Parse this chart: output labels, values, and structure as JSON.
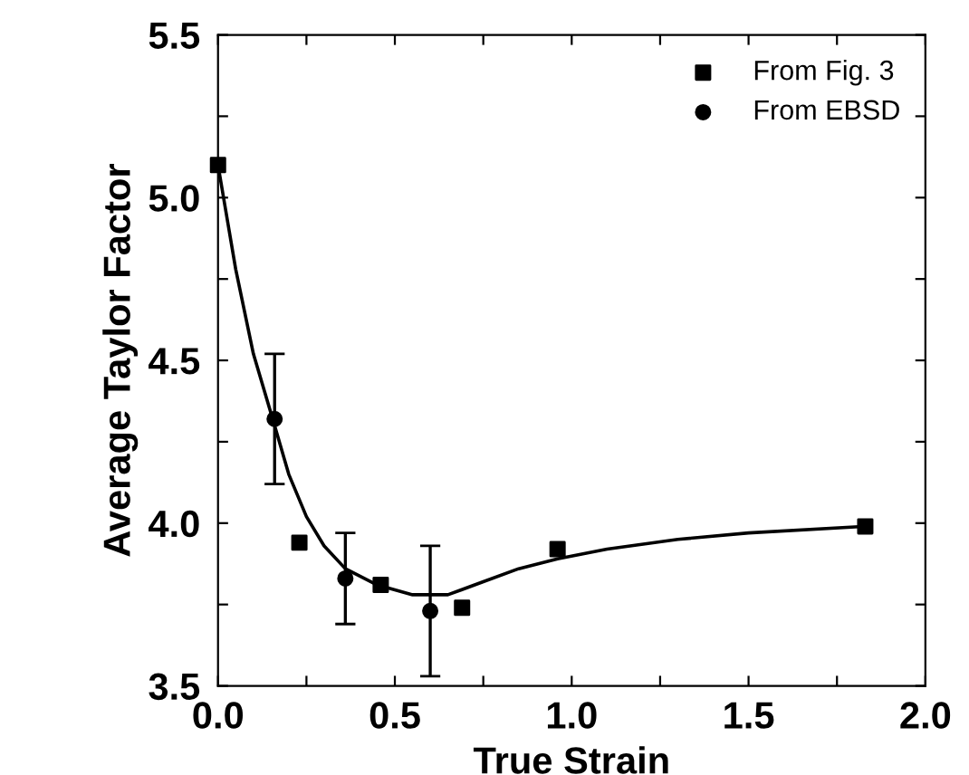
{
  "chart_data": {
    "type": "scatter",
    "xlabel": "True Strain",
    "ylabel": "Average Taylor Factor",
    "xlim": [
      0,
      2.0
    ],
    "ylim": [
      3.5,
      5.5
    ],
    "xticks": [
      {
        "value": 0.0,
        "label": "0.0"
      },
      {
        "value": 0.25,
        "label": null
      },
      {
        "value": 0.5,
        "label": "0.5"
      },
      {
        "value": 0.75,
        "label": null
      },
      {
        "value": 1.0,
        "label": "1.0"
      },
      {
        "value": 1.25,
        "label": null
      },
      {
        "value": 1.5,
        "label": "1.5"
      },
      {
        "value": 1.75,
        "label": null
      },
      {
        "value": 2.0,
        "label": "2.0"
      }
    ],
    "yticks": [
      {
        "value": 3.5,
        "label": "3.5"
      },
      {
        "value": 3.75,
        "label": null
      },
      {
        "value": 4.0,
        "label": "4.0"
      },
      {
        "value": 4.25,
        "label": null
      },
      {
        "value": 4.5,
        "label": "4.5"
      },
      {
        "value": 4.75,
        "label": null
      },
      {
        "value": 5.0,
        "label": "5.0"
      },
      {
        "value": 5.25,
        "label": null
      },
      {
        "value": 5.5,
        "label": "5.5"
      }
    ],
    "grid": false,
    "legend": "top right",
    "series": [
      {
        "name": "From Fig. 3",
        "marker": "square",
        "color": "#000000",
        "x": [
          0,
          0.23,
          0.46,
          0.69,
          0.96,
          1.83
        ],
        "values": [
          5.1,
          3.94,
          3.81,
          3.74,
          3.92,
          3.99
        ]
      },
      {
        "name": "From EBSD",
        "marker": "circle",
        "color": "#000000",
        "x": [
          0.16,
          0.36,
          0.6
        ],
        "values": [
          4.32,
          3.83,
          3.73
        ],
        "errors": [
          0.2,
          0.14,
          0.2
        ]
      },
      {
        "type": "line",
        "marker": "none",
        "color": "#000000",
        "x": [
          0,
          0.05,
          0.1,
          0.16,
          0.2,
          0.25,
          0.3,
          0.36,
          0.45,
          0.55,
          0.65,
          0.75,
          0.85,
          0.96,
          1.1,
          1.3,
          1.5,
          1.83
        ],
        "values": [
          5.1,
          4.78,
          4.52,
          4.3,
          4.15,
          4.02,
          3.93,
          3.86,
          3.81,
          3.78,
          3.78,
          3.82,
          3.86,
          3.89,
          3.92,
          3.95,
          3.97,
          3.99
        ]
      }
    ]
  }
}
